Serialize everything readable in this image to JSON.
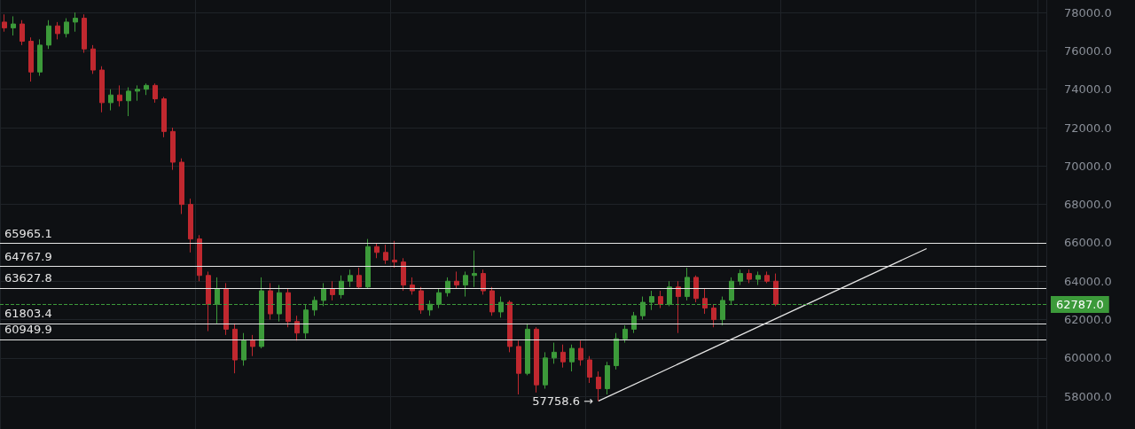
{
  "chart_data": {
    "type": "candlestick",
    "categories": [
      null,
      null,
      null,
      null,
      null,
      null,
      null,
      null,
      null,
      null,
      null,
      null,
      null,
      null,
      null,
      null,
      null,
      null,
      null,
      null,
      null,
      null,
      null,
      null,
      null,
      null,
      null,
      null,
      null,
      null,
      null,
      null,
      null,
      null,
      null,
      null,
      null,
      null,
      null,
      null,
      null,
      null,
      null,
      null,
      null,
      null,
      null,
      null,
      null,
      null,
      null,
      null,
      null,
      null,
      null,
      null,
      null,
      null,
      null,
      null,
      null,
      null,
      null,
      null,
      null,
      null,
      null,
      null,
      null,
      null,
      null,
      null,
      null,
      null,
      null,
      null,
      null,
      null,
      null,
      null,
      null,
      null,
      null,
      null,
      null,
      null,
      null,
      null,
      null,
      null,
      null,
      null,
      null,
      null,
      null,
      null,
      null,
      null,
      null,
      null,
      null,
      null,
      null,
      null,
      null,
      null,
      null,
      null,
      null,
      null,
      null,
      null,
      null,
      null,
      null,
      null,
      null,
      null
    ],
    "series": [
      {
        "colors": [
          "#c0282f",
          "#3c9a3a",
          "#c0282f",
          "#c0282f",
          "#3c9a3a",
          "#3c9a3a",
          "#c0282f",
          "#3c9a3a",
          "#3c9a3a",
          "#c0282f",
          "#c0282f",
          "#c0282f",
          "#3c9a3a",
          "#c0282f",
          "#3c9a3a",
          "#3c9a3a",
          "#3c9a3a",
          "#c0282f",
          "#c0282f",
          "#c0282f",
          "#c0282f",
          "#c0282f",
          "#c0282f",
          "#c0282f",
          "#3c9a3a",
          "#c0282f",
          "#c0282f",
          "#3c9a3a",
          "#c0282f",
          "#3c9a3a",
          "#c0282f",
          "#3c9a3a",
          "#c0282f",
          "#c0282f",
          "#3c9a3a",
          "#3c9a3a",
          "#3c9a3a",
          "#c0282f",
          "#3c9a3a",
          "#3c9a3a",
          "#c0282f",
          "#3c9a3a",
          "#c0282f",
          "#c0282f",
          "#c0282f",
          "#c0282f",
          "#c0282f",
          "#c0282f",
          "#3c9a3a",
          "#3c9a3a",
          "#3c9a3a",
          "#c0282f",
          "#3c9a3a",
          "#3c9a3a",
          "#c0282f",
          "#c0282f",
          "#3c9a3a",
          "#c0282f",
          "#c0282f",
          "#3c9a3a",
          "#c0282f",
          "#3c9a3a",
          "#3c9a3a",
          "#c0282f",
          "#3c9a3a",
          "#c0282f",
          "#c0282f",
          "#c0282f",
          "#3c9a3a",
          "#3c9a3a",
          "#3c9a3a",
          "#3c9a3a",
          "#3c9a3a",
          "#3c9a3a",
          "#c0282f",
          "#3c9a3a",
          "#c0282f",
          "#3c9a3a",
          "#c0282f",
          "#c0282f",
          "#c0282f",
          "#3c9a3a",
          "#3c9a3a",
          "#3c9a3a",
          "#c0282f",
          "#3c9a3a",
          "#c0282f",
          "#c0282f",
          null,
          null,
          null,
          null,
          null,
          null,
          null,
          null,
          null,
          null,
          null,
          null,
          null,
          null,
          null,
          null,
          null,
          null,
          null,
          null,
          null,
          null,
          null,
          null,
          null,
          null,
          null,
          null,
          null,
          null
        ],
        "ohlc": [
          [
            77500,
            77900,
            77000,
            77200
          ],
          [
            77200,
            77800,
            76800,
            77400
          ],
          [
            77400,
            77600,
            76300,
            76500
          ],
          [
            76500,
            76700,
            74400,
            74900
          ],
          [
            74900,
            76600,
            74700,
            76300
          ],
          [
            76300,
            77600,
            76100,
            77300
          ],
          [
            77300,
            77500,
            76600,
            76900
          ],
          [
            76900,
            77700,
            76700,
            77500
          ],
          [
            77500,
            78000,
            77000,
            77700
          ],
          [
            77700,
            77900,
            75900,
            76100
          ],
          [
            76100,
            76300,
            74800,
            75000
          ],
          [
            75000,
            75200,
            72800,
            73300
          ],
          [
            73300,
            74000,
            72900,
            73700
          ],
          [
            73700,
            74200,
            73100,
            73400
          ],
          [
            73400,
            74100,
            72600,
            73900
          ],
          [
            73900,
            74200,
            73400,
            74000
          ],
          [
            74000,
            74300,
            73700,
            74200
          ],
          [
            74200,
            74300,
            73300,
            73500
          ],
          [
            73500,
            73600,
            71500,
            71800
          ],
          [
            71800,
            72000,
            69800,
            70200
          ],
          [
            70200,
            70400,
            67500,
            68000
          ],
          [
            68000,
            68300,
            65500,
            66200
          ],
          [
            66200,
            66400,
            64000,
            64300
          ],
          [
            64300,
            64500,
            61400,
            62800
          ],
          [
            62800,
            64200,
            61800,
            63600
          ],
          [
            63600,
            63900,
            61200,
            61500
          ],
          [
            61500,
            61800,
            59200,
            59900
          ],
          [
            59900,
            61300,
            59600,
            60900
          ],
          [
            60900,
            61200,
            60100,
            60600
          ],
          [
            60600,
            64200,
            60500,
            63500
          ],
          [
            63500,
            63900,
            62000,
            62300
          ],
          [
            62300,
            63800,
            61900,
            63400
          ],
          [
            63400,
            63600,
            61600,
            61900
          ],
          [
            61900,
            62200,
            60900,
            61300
          ],
          [
            61300,
            62800,
            61000,
            62500
          ],
          [
            62500,
            63200,
            62200,
            63000
          ],
          [
            63000,
            63900,
            62700,
            63600
          ],
          [
            63600,
            64000,
            63000,
            63300
          ],
          [
            63300,
            64300,
            63100,
            64000
          ],
          [
            64000,
            64600,
            63700,
            64300
          ],
          [
            64300,
            64700,
            63600,
            63700
          ],
          [
            63700,
            66200,
            63600,
            65800
          ],
          [
            65800,
            65965.1,
            65200,
            65500
          ],
          [
            65500,
            65900,
            64900,
            65100
          ],
          [
            65100,
            66100,
            64700,
            65000
          ],
          [
            65000,
            65200,
            63500,
            63800
          ],
          [
            63800,
            64200,
            63300,
            63500
          ],
          [
            63500,
            63700,
            62300,
            62500
          ],
          [
            62500,
            63000,
            62200,
            62800
          ],
          [
            62800,
            63600,
            62600,
            63400
          ],
          [
            63400,
            64200,
            63200,
            64000
          ],
          [
            64000,
            64500,
            63600,
            63800
          ],
          [
            63800,
            64500,
            63200,
            64300
          ],
          [
            64300,
            65600,
            63700,
            64400
          ],
          [
            64400,
            64600,
            63300,
            63500
          ],
          [
            63500,
            63700,
            62200,
            62400
          ],
          [
            62400,
            63200,
            62100,
            62900
          ],
          [
            62900,
            63000,
            60300,
            60600
          ],
          [
            60600,
            60900,
            58100,
            59200
          ],
          [
            59200,
            61800,
            59100,
            61500
          ],
          [
            61500,
            61600,
            58200,
            58600
          ],
          [
            58600,
            60300,
            58400,
            60000
          ],
          [
            60000,
            60800,
            59700,
            60300
          ],
          [
            60300,
            60700,
            59500,
            59800
          ],
          [
            59800,
            60700,
            59300,
            60500
          ],
          [
            60500,
            60900,
            59600,
            59900
          ],
          [
            59900,
            60100,
            58700,
            59000
          ],
          [
            59000,
            59300,
            57758.6,
            58400
          ],
          [
            58400,
            59800,
            58100,
            59600
          ],
          [
            59600,
            61300,
            59400,
            61000
          ],
          [
            61000,
            61700,
            60800,
            61500
          ],
          [
            61500,
            62400,
            61300,
            62200
          ],
          [
            62200,
            63200,
            62000,
            62900
          ],
          [
            62900,
            63500,
            62500,
            63200
          ],
          [
            63200,
            63500,
            62600,
            62800
          ],
          [
            62800,
            64000,
            62700,
            63700
          ],
          [
            63700,
            64000,
            61300,
            63200
          ],
          [
            63200,
            64700,
            63000,
            64200
          ],
          [
            64200,
            64300,
            62900,
            63100
          ],
          [
            63100,
            63600,
            62300,
            62600
          ],
          [
            62600,
            62800,
            61600,
            62000
          ],
          [
            62000,
            63200,
            61700,
            63000
          ],
          [
            63000,
            64200,
            62800,
            64000
          ],
          [
            64000,
            64600,
            63800,
            64400
          ],
          [
            64400,
            64600,
            63900,
            64100
          ],
          [
            64100,
            64500,
            63800,
            64300
          ],
          [
            64300,
            64500,
            63900,
            64000
          ],
          [
            64000,
            64400,
            62700,
            62787
          ],
          null,
          null,
          null,
          null,
          null,
          null,
          null,
          null,
          null,
          null,
          null,
          null,
          null,
          null,
          null,
          null,
          null,
          null,
          null,
          null,
          null,
          null,
          null,
          null,
          null,
          null,
          null,
          null,
          null,
          null
        ]
      },
      {
        "type": "line",
        "color": "#e6e6e6",
        "values": [
          null,
          null,
          null,
          null,
          null,
          null,
          null,
          null,
          null,
          null,
          null,
          null,
          null,
          null,
          null,
          null,
          null,
          null,
          null,
          null,
          null,
          null,
          null,
          null,
          null,
          null,
          null,
          null,
          null,
          null,
          null,
          null,
          null,
          null,
          null,
          null,
          null,
          null,
          null,
          null,
          null,
          null,
          null,
          null,
          null,
          null,
          null,
          null,
          null,
          null,
          null,
          null,
          null,
          null,
          null,
          null,
          null,
          null,
          null,
          null,
          null,
          null,
          null,
          null,
          null,
          null,
          null,
          57758.6,
          null,
          null,
          null,
          null,
          null,
          null,
          null,
          null,
          null,
          null,
          null,
          null,
          null,
          null,
          null,
          null,
          null,
          null,
          null,
          null,
          null,
          null,
          null,
          null,
          null,
          null,
          null,
          null,
          null,
          null,
          null,
          null,
          null,
          null,
          null,
          null,
          65700,
          null,
          null,
          null,
          null,
          null,
          null,
          null,
          null,
          null,
          null,
          null,
          null,
          null
        ]
      }
    ],
    "ylim": [
      56300,
      78650
    ],
    "yticks": [
      {
        "value": 58000,
        "label": "58000.0"
      },
      {
        "value": 60000,
        "label": "60000.0"
      },
      {
        "value": 62000,
        "label": "62000.0"
      },
      {
        "value": 64000,
        "label": "64000.0"
      },
      {
        "value": 66000,
        "label": "66000.0"
      },
      {
        "value": 68000,
        "label": "68000.0"
      },
      {
        "value": 70000,
        "label": "70000.0"
      },
      {
        "value": 72000,
        "label": "72000.0"
      },
      {
        "value": 74000,
        "label": "74000.0"
      },
      {
        "value": 76000,
        "label": "76000.0"
      },
      {
        "value": 78000,
        "label": "78000.0"
      }
    ],
    "tick_labels": "y",
    "grid": true,
    "ref_lines": [
      {
        "axis": "y",
        "value": 65965.1,
        "label": "65965.1",
        "color": "#e6e6e6"
      },
      {
        "axis": "y",
        "value": 64767.9,
        "label": "64767.9",
        "color": "#e6e6e6"
      },
      {
        "axis": "y",
        "value": 63627.8,
        "label": "63627.8",
        "color": "#e6e6e6"
      },
      {
        "axis": "y",
        "value": 61803.4,
        "label": "61803.4",
        "color": "#e6e6e6"
      },
      {
        "axis": "y",
        "value": 60949.9,
        "label": "60949.9",
        "color": "#e6e6e6"
      },
      {
        "axis": "y",
        "value": 62787,
        "label": "62787.0",
        "color": "#3c9a3a",
        "line_style": "dashed"
      }
    ],
    "annotations": [
      "57758.6 →"
    ]
  }
}
